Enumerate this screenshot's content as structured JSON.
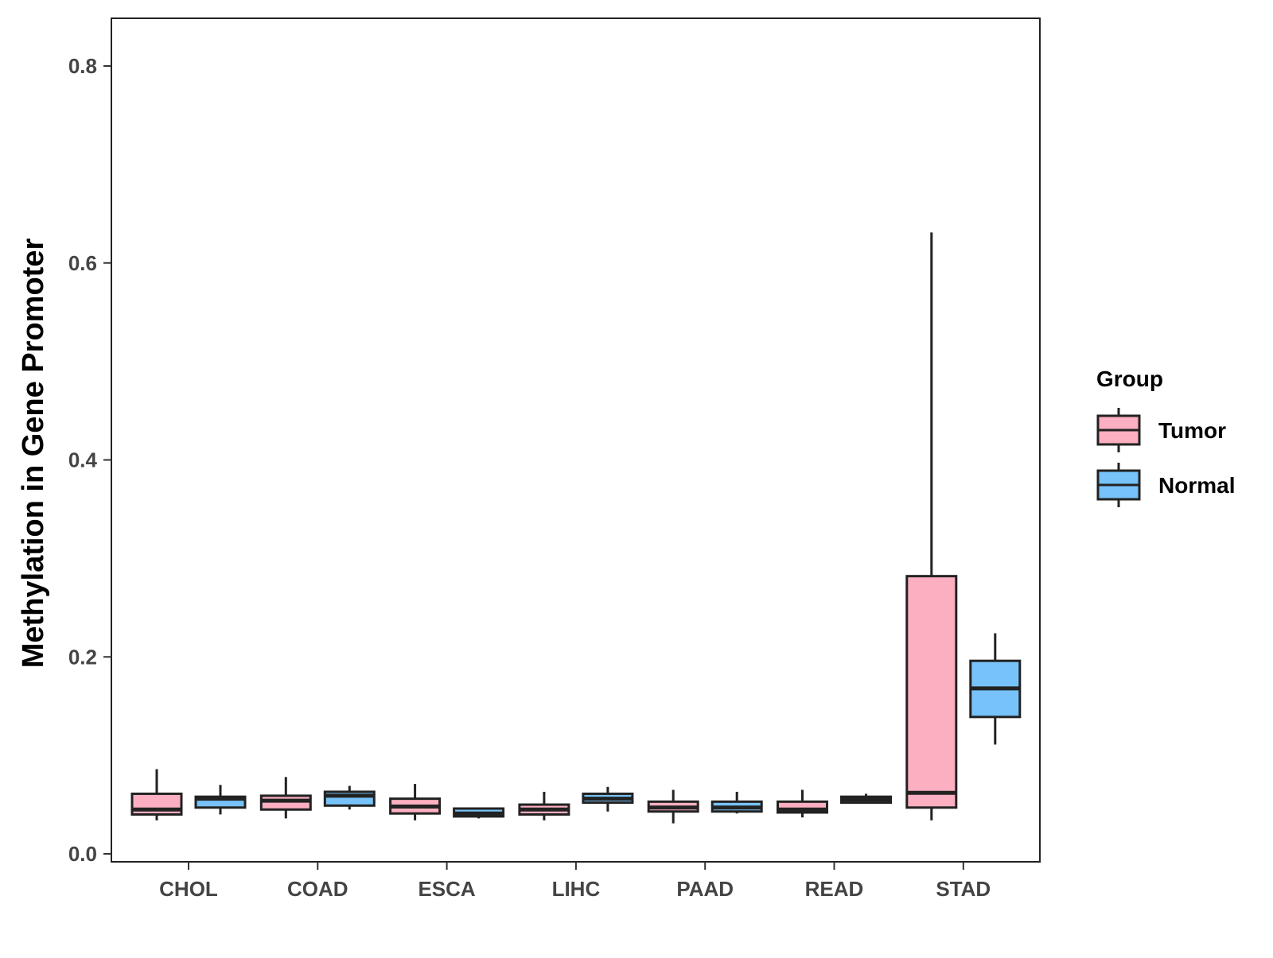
{
  "chart_data": {
    "type": "boxplot",
    "title": "",
    "xlabel": "",
    "ylabel": "Methylation in Gene Promoter",
    "ylim": [
      0,
      0.85
    ],
    "yticks": [
      "0.0",
      "0.2",
      "0.4",
      "0.6",
      "0.8"
    ],
    "categories": [
      "CHOL",
      "COAD",
      "ESCA",
      "LIHC",
      "PAAD",
      "READ",
      "STAD"
    ],
    "legend": {
      "title": "Group",
      "position": "right"
    },
    "series": [
      {
        "name": "Tumor",
        "color": "#FCAFC0",
        "boxes": [
          {
            "min": 0.034,
            "q1": 0.04,
            "median": 0.045,
            "q3": 0.061,
            "max": 0.086
          },
          {
            "min": 0.036,
            "q1": 0.045,
            "median": 0.054,
            "q3": 0.059,
            "max": 0.078
          },
          {
            "min": 0.034,
            "q1": 0.041,
            "median": 0.048,
            "q3": 0.056,
            "max": 0.071
          },
          {
            "min": 0.034,
            "q1": 0.04,
            "median": 0.045,
            "q3": 0.05,
            "max": 0.063
          },
          {
            "min": 0.031,
            "q1": 0.043,
            "median": 0.047,
            "q3": 0.053,
            "max": 0.065
          },
          {
            "min": 0.037,
            "q1": 0.042,
            "median": 0.045,
            "q3": 0.053,
            "max": 0.065
          },
          {
            "min": 0.034,
            "q1": 0.047,
            "median": 0.062,
            "q3": 0.282,
            "max": 0.631
          }
        ]
      },
      {
        "name": "Normal",
        "color": "#77C3F9",
        "boxes": [
          {
            "min": 0.04,
            "q1": 0.047,
            "median": 0.056,
            "q3": 0.058,
            "max": 0.07
          },
          {
            "min": 0.045,
            "q1": 0.049,
            "median": 0.059,
            "q3": 0.063,
            "max": 0.069
          },
          {
            "min": 0.036,
            "q1": 0.038,
            "median": 0.041,
            "q3": 0.046,
            "max": 0.047
          },
          {
            "min": 0.043,
            "q1": 0.052,
            "median": 0.056,
            "q3": 0.061,
            "max": 0.068
          },
          {
            "min": 0.041,
            "q1": 0.043,
            "median": 0.047,
            "q3": 0.053,
            "max": 0.063
          },
          {
            "min": 0.051,
            "q1": 0.052,
            "median": 0.055,
            "q3": 0.058,
            "max": 0.061
          },
          {
            "min": 0.111,
            "q1": 0.139,
            "median": 0.168,
            "q3": 0.196,
            "max": 0.224
          }
        ]
      }
    ]
  }
}
